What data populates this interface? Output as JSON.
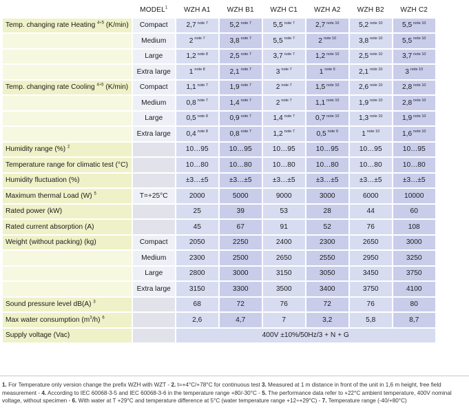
{
  "header": {
    "model_label": "MODEL",
    "model_sup": "1",
    "models": [
      "WZH A1",
      "WZH B1",
      "WZH C1",
      "WZH A2",
      "WZH B2",
      "WZH C2"
    ]
  },
  "rows": [
    {
      "label": "Temp. changing rate Heating ",
      "label_sup": "4÷5",
      "label_after": " (K/min)",
      "sub": "Compact",
      "cells": [
        {
          "v": "2,7",
          "n": "note 7"
        },
        {
          "v": "5,2",
          "n": "note 7"
        },
        {
          "v": "5,5",
          "n": "note 7"
        },
        {
          "v": "2,7",
          "n": "note 10"
        },
        {
          "v": "5,2",
          "n": "note 10"
        },
        {
          "v": "5,5",
          "n": "note 10"
        }
      ]
    },
    {
      "label": "",
      "sub": "Medium",
      "cells": [
        {
          "v": "2",
          "n": "note 7"
        },
        {
          "v": "3,8",
          "n": "note 7"
        },
        {
          "v": "5,5",
          "n": "note 7"
        },
        {
          "v": "2",
          "n": "note 10"
        },
        {
          "v": "3,8",
          "n": "note 10"
        },
        {
          "v": "5,5",
          "n": "note 10"
        }
      ]
    },
    {
      "label": "",
      "sub": "Large",
      "cells": [
        {
          "v": "1,2",
          "n": "note 8"
        },
        {
          "v": "2,5",
          "n": "note 7"
        },
        {
          "v": "3,7",
          "n": "note 7"
        },
        {
          "v": "1,2",
          "n": "note 10"
        },
        {
          "v": "2,5",
          "n": "note 10"
        },
        {
          "v": "3,7",
          "n": "note 10"
        }
      ]
    },
    {
      "label": "",
      "sub": "Extra large",
      "cells": [
        {
          "v": "1",
          "n": "note 8"
        },
        {
          "v": "2,1",
          "n": "note 7"
        },
        {
          "v": "3",
          "n": "note 7"
        },
        {
          "v": "1",
          "n": "note 9"
        },
        {
          "v": "2,1",
          "n": "note 10"
        },
        {
          "v": "3",
          "n": "note 10"
        }
      ]
    },
    {
      "label": "Temp. changing rate Cooling ",
      "label_sup": "4÷5",
      "label_after": " (K/min)",
      "sub": "Compact",
      "cells": [
        {
          "v": "1,1",
          "n": "note 7"
        },
        {
          "v": "1,9",
          "n": "note 7"
        },
        {
          "v": "2",
          "n": "note 7"
        },
        {
          "v": "1,5",
          "n": "note 10"
        },
        {
          "v": "2,6",
          "n": "note 10"
        },
        {
          "v": "2,8",
          "n": "note 10"
        }
      ]
    },
    {
      "label": "",
      "sub": "Medium",
      "cells": [
        {
          "v": "0,8",
          "n": "note 7"
        },
        {
          "v": "1,4",
          "n": "note 7"
        },
        {
          "v": "2",
          "n": "note 7"
        },
        {
          "v": "1,1",
          "n": "note 10"
        },
        {
          "v": "1,9",
          "n": "note 10"
        },
        {
          "v": "2,8",
          "n": "note 10"
        }
      ]
    },
    {
      "label": "",
      "sub": "Large",
      "cells": [
        {
          "v": "0,5",
          "n": "note 8"
        },
        {
          "v": "0,9",
          "n": "note 7"
        },
        {
          "v": "1,4",
          "n": "note 7"
        },
        {
          "v": "0,7",
          "n": "note 10"
        },
        {
          "v": "1,3",
          "n": "note 10"
        },
        {
          "v": "1,9",
          "n": "note 10"
        }
      ]
    },
    {
      "label": "",
      "sub": "Extra large",
      "cells": [
        {
          "v": "0,4",
          "n": "note 8"
        },
        {
          "v": "0,8",
          "n": "note 7"
        },
        {
          "v": "1,2",
          "n": "note 7"
        },
        {
          "v": "0,5",
          "n": "note 9"
        },
        {
          "v": "1",
          "n": "note 10"
        },
        {
          "v": "1,6",
          "n": "note 10"
        }
      ]
    },
    {
      "label": "Humidity range (%) ",
      "label_sup": "2",
      "sub": "",
      "cells": [
        {
          "v": "10…95"
        },
        {
          "v": "10…95"
        },
        {
          "v": "10…95"
        },
        {
          "v": "10…95"
        },
        {
          "v": "10…95"
        },
        {
          "v": "10…95"
        }
      ]
    },
    {
      "label": "Temperature range for climatic test (°C)",
      "sub": "",
      "cells": [
        {
          "v": "10…80"
        },
        {
          "v": "10…80"
        },
        {
          "v": "10…80"
        },
        {
          "v": "10…80"
        },
        {
          "v": "10…80"
        },
        {
          "v": "10…80"
        }
      ]
    },
    {
      "label": "Humidity fluctuation (%)",
      "sub": "",
      "cells": [
        {
          "v": "±3…±5"
        },
        {
          "v": "±3…±5"
        },
        {
          "v": "±3…±5"
        },
        {
          "v": "±3…±5"
        },
        {
          "v": "±3…±5"
        },
        {
          "v": "±3…±5"
        }
      ]
    },
    {
      "label": "Maximum thermal Load (W) ",
      "label_sup": "5",
      "sub": "T=+25°C",
      "cells": [
        {
          "v": "2000"
        },
        {
          "v": "5000"
        },
        {
          "v": "9000"
        },
        {
          "v": "3000"
        },
        {
          "v": "6000"
        },
        {
          "v": "10000"
        }
      ]
    },
    {
      "label": "Rated power (kW)",
      "sub": "",
      "cells": [
        {
          "v": "25"
        },
        {
          "v": "39"
        },
        {
          "v": "53"
        },
        {
          "v": "28"
        },
        {
          "v": "44"
        },
        {
          "v": "60"
        }
      ]
    },
    {
      "label": "Rated current absorption (A)",
      "sub": "",
      "cells": [
        {
          "v": "45"
        },
        {
          "v": "67"
        },
        {
          "v": "91"
        },
        {
          "v": "52"
        },
        {
          "v": "76"
        },
        {
          "v": "108"
        }
      ]
    },
    {
      "label": "Weight (without packing) (kg)",
      "sub": "Compact",
      "cells": [
        {
          "v": "2050"
        },
        {
          "v": "2250"
        },
        {
          "v": "2400"
        },
        {
          "v": "2300"
        },
        {
          "v": "2650"
        },
        {
          "v": "3000"
        }
      ]
    },
    {
      "label": "",
      "sub": "Medium",
      "cells": [
        {
          "v": "2300"
        },
        {
          "v": "2500"
        },
        {
          "v": "2650"
        },
        {
          "v": "2550"
        },
        {
          "v": "2950"
        },
        {
          "v": "3250"
        }
      ]
    },
    {
      "label": "",
      "sub": "Large",
      "cells": [
        {
          "v": "2800"
        },
        {
          "v": "3000"
        },
        {
          "v": "3150"
        },
        {
          "v": "3050"
        },
        {
          "v": "3450"
        },
        {
          "v": "3750"
        }
      ]
    },
    {
      "label": "",
      "sub": "Extra large",
      "cells": [
        {
          "v": "3150"
        },
        {
          "v": "3300"
        },
        {
          "v": "3500"
        },
        {
          "v": "3400"
        },
        {
          "v": "3750"
        },
        {
          "v": "4100"
        }
      ]
    },
    {
      "label": "Sound pressure level dB(A) ",
      "label_sup": "3",
      "sub": "",
      "cells": [
        {
          "v": "68"
        },
        {
          "v": "72"
        },
        {
          "v": "76"
        },
        {
          "v": "72"
        },
        {
          "v": "76"
        },
        {
          "v": "80"
        }
      ]
    },
    {
      "label": "Max water consumption (m",
      "label_sup": "3",
      "label_after": "/h) ",
      "label_sup2": "6",
      "sub": "",
      "cells": [
        {
          "v": "2,6"
        },
        {
          "v": "4,7"
        },
        {
          "v": "7"
        },
        {
          "v": "3,2"
        },
        {
          "v": "5,8"
        },
        {
          "v": "8,7"
        }
      ]
    },
    {
      "label": "Supply voltage (Vac)",
      "sub": "",
      "span": "400V ±10%/50Hz/3 + N + G"
    }
  ],
  "footnotes": [
    {
      "num": "1.",
      "text": " For Temperature only version change the prefix WZH with WZT - "
    },
    {
      "num": "2.",
      "text": " t=+4°C/+78°C for continuous test "
    },
    {
      "num": "3.",
      "text": " Measured at 1 m distance in front of the unit in 1,6 m height, free field measurement - "
    },
    {
      "num": "4.",
      "text": " According to IEC 60068-3-5 and IEC 60068-3-6 in the temperature range +80/-30°C - "
    },
    {
      "num": "5.",
      "text": " The performance data refer to +22°C ambient temperature, 400V nominal voltage, without specimen - "
    },
    {
      "num": "6.",
      "text": " With water at T +29°C and temperature difference at 5°C (water temperature range +12÷+29°C) - "
    },
    {
      "num": "7.",
      "text": " Temperature range (-40/+80°C)"
    }
  ]
}
